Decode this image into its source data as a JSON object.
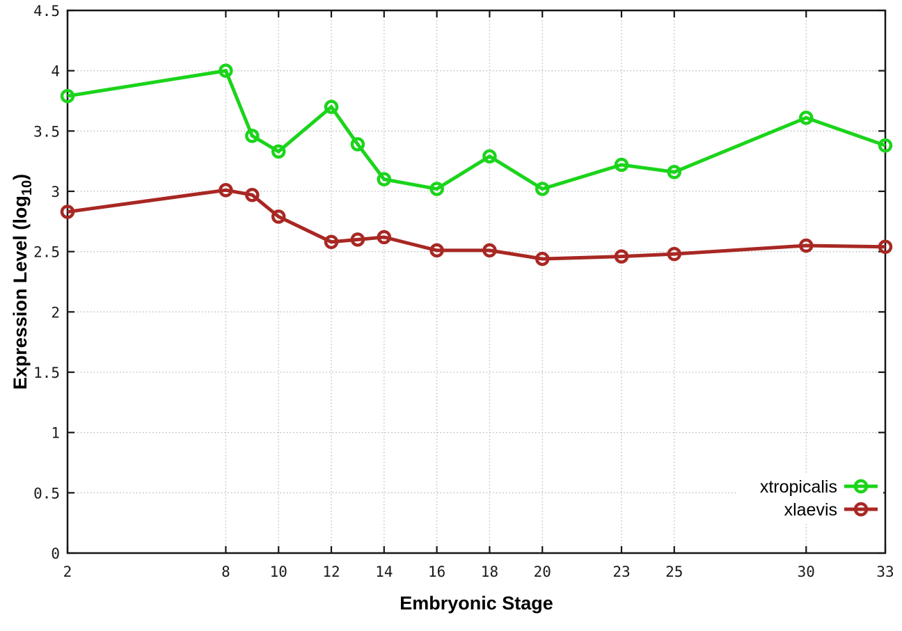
{
  "chart_data": {
    "type": "line",
    "title": "",
    "xlabel": "Embryonic Stage",
    "ylabel": {
      "prefix": "Expression Level (log",
      "sub": "10",
      "suffix": ")"
    },
    "x": [
      2,
      8,
      9,
      10,
      12,
      13,
      14,
      16,
      18,
      20,
      23,
      25,
      30,
      33
    ],
    "series": [
      {
        "name": "xtropicalis",
        "color": "#1bd41b",
        "values": [
          3.79,
          4.0,
          3.46,
          3.33,
          3.7,
          3.39,
          3.1,
          3.02,
          3.29,
          3.02,
          3.22,
          3.16,
          3.61,
          3.38
        ]
      },
      {
        "name": "xlaevis",
        "color": "#a82823",
        "values": [
          2.83,
          3.01,
          2.97,
          2.79,
          2.58,
          2.6,
          2.62,
          2.51,
          2.51,
          2.44,
          2.46,
          2.48,
          2.55,
          2.54
        ]
      }
    ],
    "xlim": [
      2,
      33
    ],
    "ylim": [
      0,
      4.5
    ],
    "xticks": [
      2,
      8,
      10,
      12,
      14,
      16,
      18,
      20,
      23,
      25,
      30,
      33
    ],
    "xtick_labels": [
      "2",
      "8",
      "10",
      "12",
      "14",
      "16",
      "18",
      "20",
      "23",
      "25",
      "30",
      "33"
    ],
    "yticks": [
      0,
      0.5,
      1,
      1.5,
      2,
      2.5,
      3,
      3.5,
      4,
      4.5
    ],
    "ytick_labels": [
      "0",
      "0.5",
      "1",
      "1.5",
      "2",
      "2.5",
      "3",
      "3.5",
      "4",
      "4.5"
    ],
    "grid": true,
    "legend_position": "bottom-right",
    "colors": {
      "background": "#ffffff",
      "axis": "#161616",
      "grid": "#b8b8b8",
      "tick_text": "#1a1a1a"
    }
  }
}
